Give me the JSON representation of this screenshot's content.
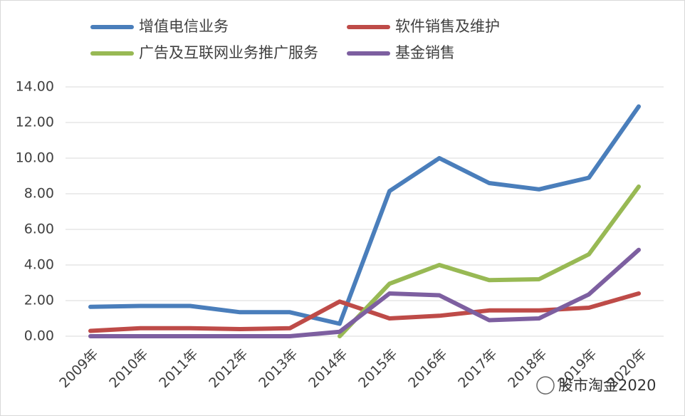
{
  "chart_data": {
    "type": "line",
    "categories": [
      "2009年",
      "2010年",
      "2011年",
      "2012年",
      "2013年",
      "2014年",
      "2015年",
      "2016年",
      "2017年",
      "2018年",
      "2019年",
      "2020年"
    ],
    "series": [
      {
        "name": "增值电信业务",
        "color": "#4a7ebb",
        "values": [
          1.65,
          1.7,
          1.7,
          1.35,
          1.35,
          0.7,
          8.15,
          10.0,
          8.6,
          8.25,
          8.9,
          12.9
        ]
      },
      {
        "name": "软件销售及维护",
        "color": "#be4b48",
        "values": [
          0.3,
          0.45,
          0.45,
          0.4,
          0.45,
          1.95,
          1.0,
          1.15,
          1.45,
          1.45,
          1.6,
          2.4
        ]
      },
      {
        "name": "广告及互联网业务推广服务",
        "color": "#98b954",
        "values": [
          null,
          null,
          null,
          null,
          null,
          0,
          2.95,
          4.0,
          3.15,
          3.2,
          4.6,
          8.4
        ]
      },
      {
        "name": "基金销售",
        "color": "#7d5fa0",
        "values": [
          0,
          0,
          0,
          0,
          0,
          0.25,
          2.4,
          2.3,
          0.9,
          1.0,
          2.35,
          4.85
        ]
      }
    ],
    "ylim": [
      0,
      14
    ],
    "yticks": [
      {
        "value": 0,
        "label": "0.00"
      },
      {
        "value": 2,
        "label": "2.00"
      },
      {
        "value": 4,
        "label": "4.00"
      },
      {
        "value": 6,
        "label": "6.00"
      },
      {
        "value": 8,
        "label": "8.00"
      },
      {
        "value": 10,
        "label": "10.00"
      },
      {
        "value": 12,
        "label": "12.00"
      },
      {
        "value": 14,
        "label": "14.00"
      }
    ],
    "grid": true,
    "watermark": "股市淘金2020"
  }
}
